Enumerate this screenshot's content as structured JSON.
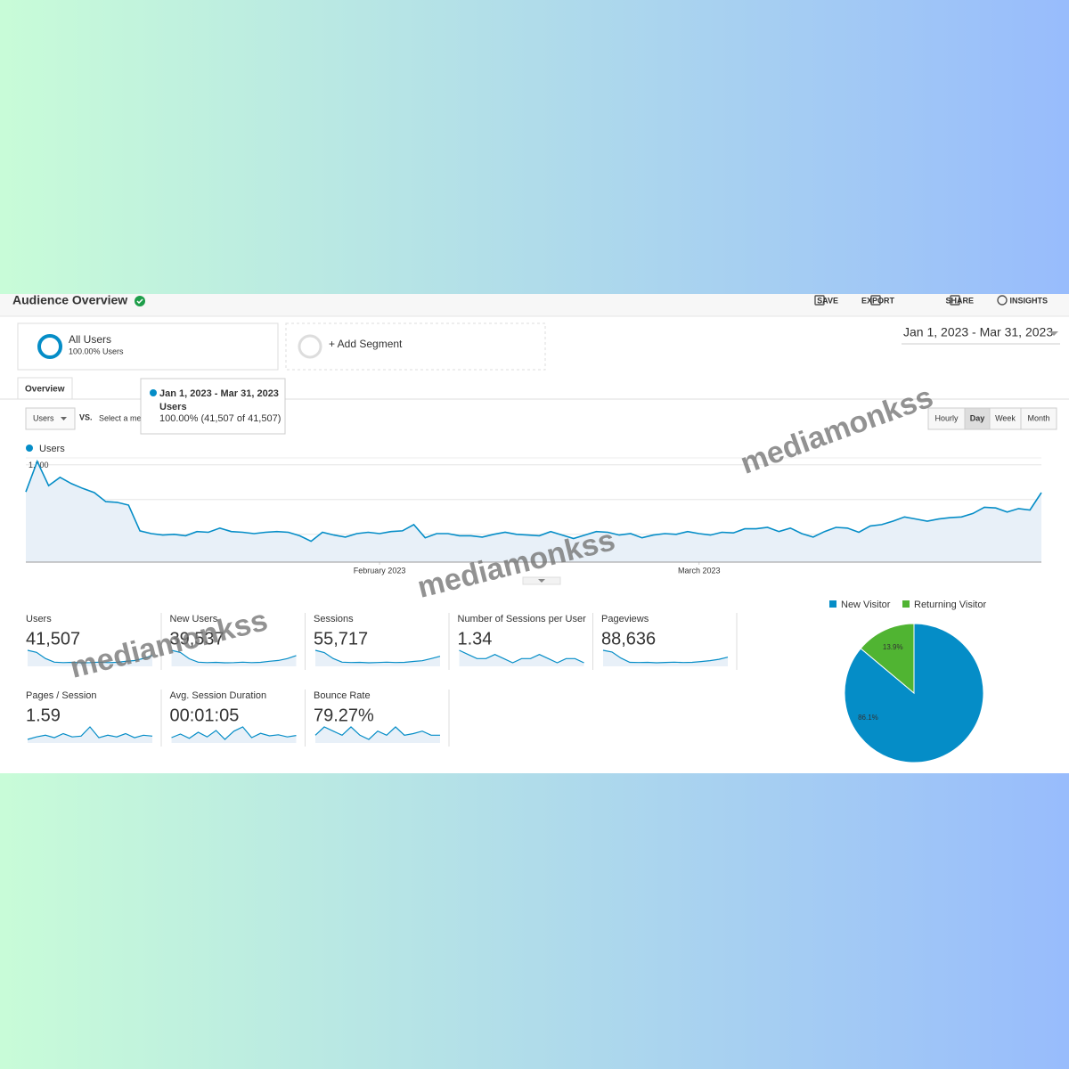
{
  "header": {
    "title": "Audience Overview",
    "actions": [
      "SAVE",
      "EXPORT",
      "SHARE",
      "INSIGHTS"
    ]
  },
  "date_range": "Jan 1, 2023 - Mar 31, 2023",
  "segments": {
    "active": {
      "name": "All Users",
      "detail": "100.00% Users"
    },
    "add": "+ Add Segment"
  },
  "tab": "Overview",
  "controls": {
    "metric": "Users",
    "vs": "VS.",
    "compare": "Select a metric",
    "granularity": [
      "Hourly",
      "Day",
      "Week",
      "Month"
    ],
    "selected": 1
  },
  "tooltip": {
    "date": "Jan 1, 2023 - Mar 31, 2023",
    "metric": "Users",
    "value": "100.00% (41,507 of 41,507)"
  },
  "chart_data": {
    "type": "line",
    "series": [
      {
        "name": "Users",
        "color": "#058dc7",
        "values": [
          1110,
          1550,
          1200,
          1320,
          1230,
          1160,
          1100,
          970,
          960,
          920,
          550,
          510,
          490,
          500,
          480,
          540,
          530,
          590,
          540,
          530,
          510,
          530,
          540,
          530,
          480,
          400,
          530,
          490,
          460,
          510,
          530,
          510,
          540,
          550,
          640,
          450,
          510,
          510,
          480,
          480,
          460,
          500,
          530,
          500,
          490,
          480,
          540,
          490,
          440,
          490,
          540,
          530,
          490,
          510,
          450,
          490,
          510,
          500,
          540,
          510,
          490,
          530,
          520,
          580,
          580,
          600,
          540,
          590,
          510,
          460,
          540,
          600,
          590,
          530,
          620,
          640,
          690,
          750,
          720,
          690,
          720,
          740,
          750,
          800,
          890,
          880,
          820,
          870,
          850,
          1100
        ]
      }
    ],
    "xlim": [
      1,
      90
    ],
    "xticks": [
      {
        "value": 32,
        "label": "February 2023"
      },
      {
        "value": 60,
        "label": "March 2023"
      }
    ],
    "ylim": [
      100,
      1600
    ],
    "yticks": [
      500,
      {
        "value": 1000,
        "label": "1,000"
      },
      {
        "value": 1500,
        "label": "1,500"
      }
    ],
    "grid": true
  },
  "metrics": [
    {
      "label": "Users",
      "value": "41,507",
      "trend": [
        1100,
        1000,
        700,
        520,
        500,
        510,
        490,
        500,
        520,
        500,
        510,
        560,
        600,
        700,
        850
      ]
    },
    {
      "label": "New Users",
      "value": "39,537",
      "trend": [
        1050,
        950,
        650,
        490,
        470,
        480,
        460,
        470,
        490,
        470,
        480,
        530,
        570,
        660,
        800
      ]
    },
    {
      "label": "Sessions",
      "value": "55,717",
      "trend": [
        1500,
        1350,
        950,
        700,
        680,
        690,
        660,
        680,
        700,
        680,
        690,
        750,
        800,
        940,
        1100
      ]
    },
    {
      "label": "Number of Sessions per User",
      "value": "1.34",
      "trend": [
        1.36,
        1.35,
        1.34,
        1.34,
        1.35,
        1.34,
        1.33,
        1.34,
        1.34,
        1.35,
        1.34,
        1.33,
        1.34,
        1.34,
        1.33
      ]
    },
    {
      "label": "Pageviews",
      "value": "88,636",
      "trend": [
        2400,
        2200,
        1500,
        1000,
        980,
        1000,
        950,
        990,
        1020,
        980,
        1000,
        1100,
        1200,
        1350,
        1600
      ]
    },
    {
      "label": "Pages / Session",
      "value": "1.59",
      "trend": [
        1.55,
        1.58,
        1.6,
        1.57,
        1.62,
        1.58,
        1.59,
        1.7,
        1.57,
        1.6,
        1.58,
        1.62,
        1.57,
        1.6,
        1.59
      ]
    },
    {
      "label": "Avg. Session Duration",
      "value": "00:01:05",
      "trend": [
        60,
        70,
        58,
        75,
        62,
        80,
        55,
        78,
        90,
        60,
        72,
        65,
        68,
        62,
        66
      ]
    },
    {
      "label": "Bounce Rate",
      "value": "79.27%",
      "trend": [
        79,
        80,
        79.5,
        79,
        80,
        79,
        78.5,
        79.5,
        79,
        80,
        79,
        79.2,
        79.5,
        79,
        79
      ]
    }
  ],
  "pie": {
    "type": "pie",
    "categories": [
      "New Visitor",
      "Returning Visitor"
    ],
    "values": [
      86.1,
      13.9
    ],
    "value_labels": [
      "86.1%",
      "13.9%"
    ],
    "colors": [
      "#058dc7",
      "#50b432"
    ]
  },
  "watermarks": [
    "mediamonkss",
    "mediamonkss",
    "mediamonkss"
  ]
}
